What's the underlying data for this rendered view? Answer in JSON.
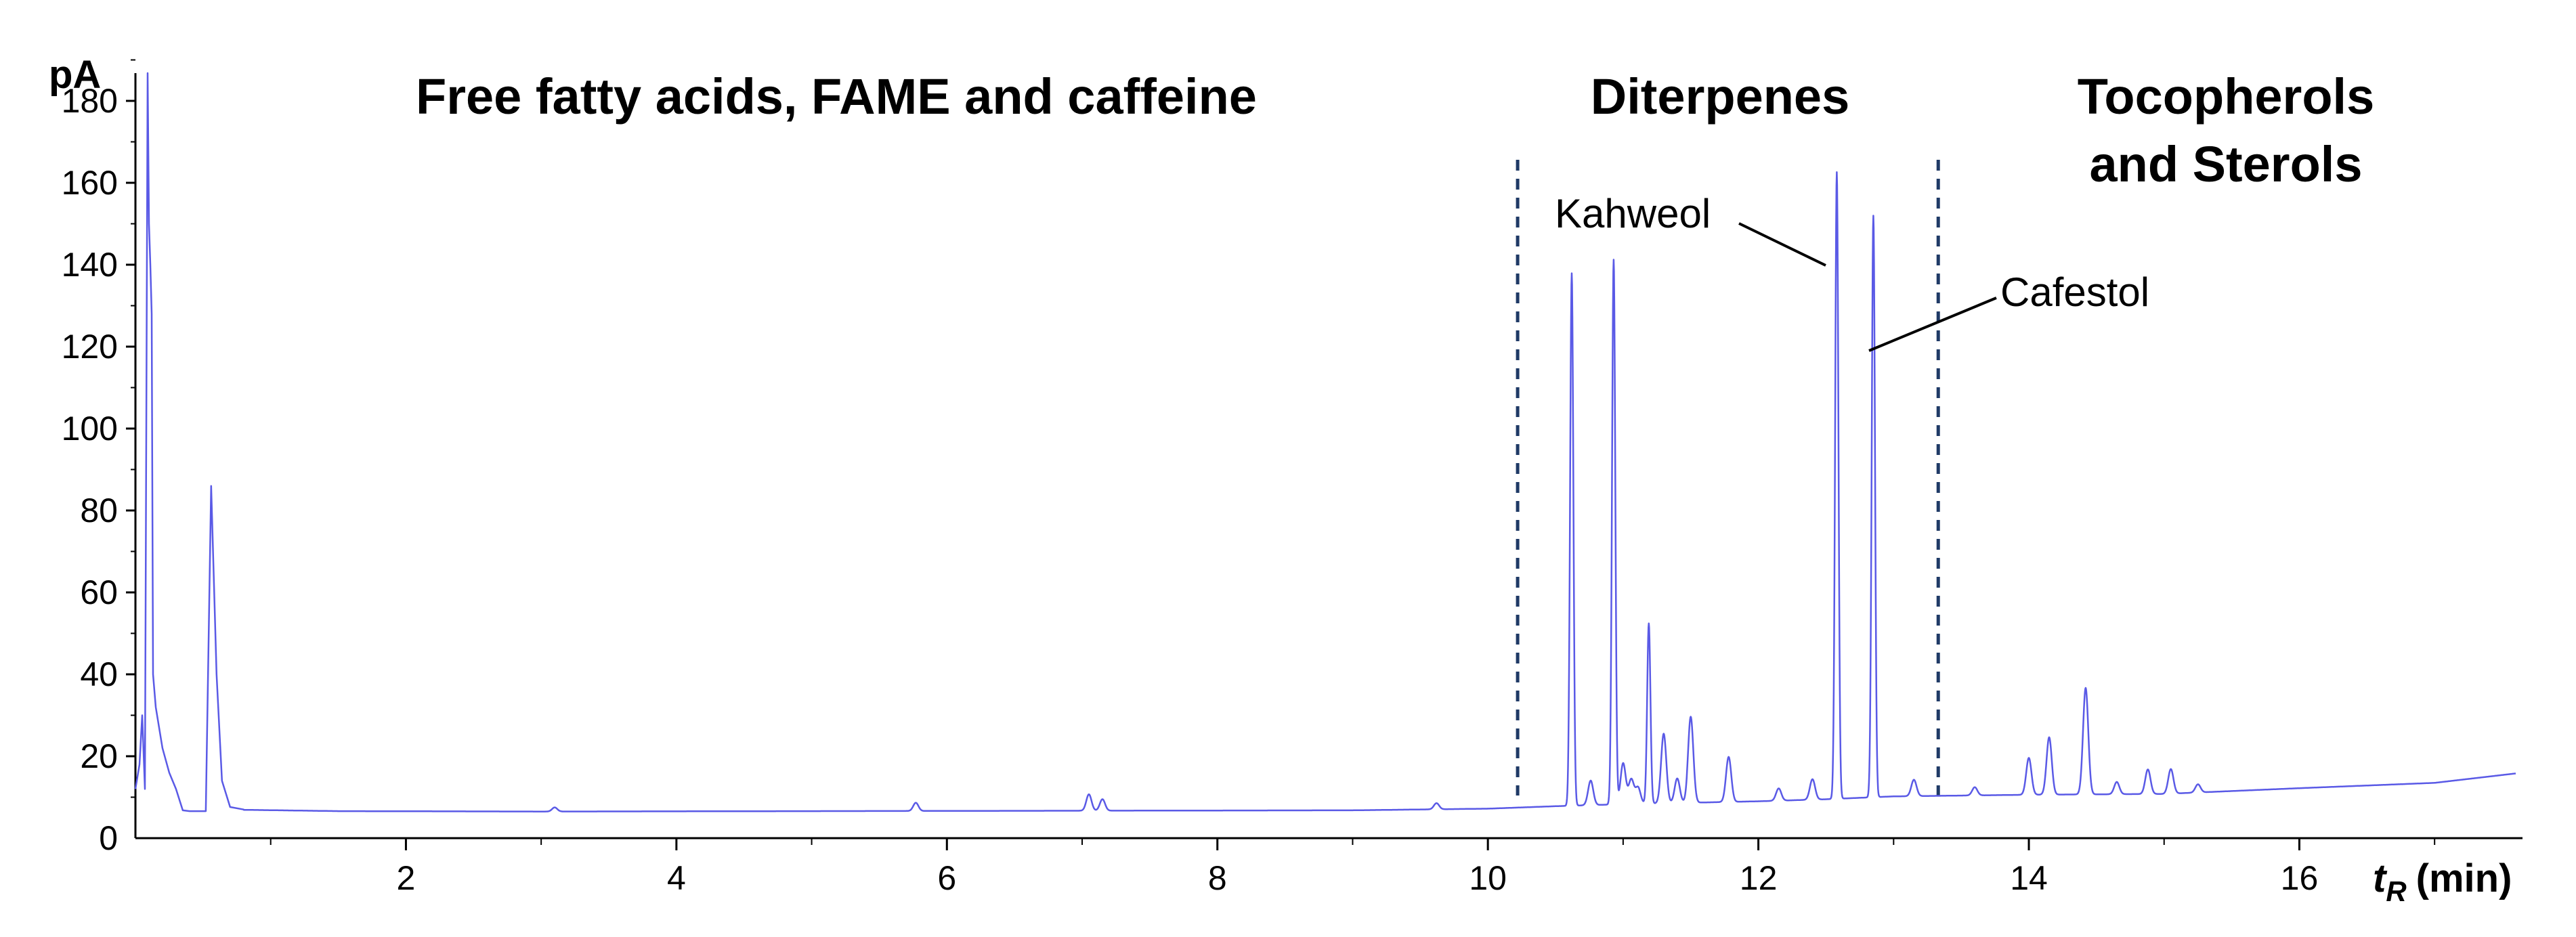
{
  "chart_data": {
    "type": "line",
    "ylabel": "pA",
    "xlabel_symbol": "t",
    "xlabel_subscript": "R",
    "xlabel_unit": "(min)",
    "xlim": [
      0,
      17.65
    ],
    "ylim": [
      0,
      200
    ],
    "x_ticks": [
      "2",
      "4",
      "6",
      "8",
      "10",
      "12",
      "14",
      "16"
    ],
    "y_ticks": [
      "0",
      "20",
      "40",
      "60",
      "80",
      "100",
      "120",
      "140",
      "160",
      "180"
    ],
    "regions": [
      {
        "label": "Free fatty acids, FAME and caffeine"
      },
      {
        "label": "Diterpenes"
      },
      {
        "label": "Tocopherols",
        "label2": "and Sterols"
      }
    ],
    "dividers_x": [
      10.22,
      13.33
    ],
    "annotations": [
      {
        "text": "Kahweol",
        "x": 12.58,
        "y": 152
      },
      {
        "text": "Cafestol",
        "x": 12.85,
        "y": 128
      }
    ],
    "baseline": [
      [
        0.62,
        7.0
      ],
      [
        1.5,
        6.6
      ],
      [
        3.0,
        6.5
      ],
      [
        5.0,
        6.6
      ],
      [
        7.0,
        6.7
      ],
      [
        9.0,
        6.8
      ],
      [
        10.0,
        7.2
      ],
      [
        10.5,
        7.8
      ],
      [
        11.0,
        8.3
      ],
      [
        12.0,
        9.0
      ],
      [
        12.5,
        9.5
      ],
      [
        13.0,
        10.2
      ],
      [
        13.5,
        10.4
      ],
      [
        14.0,
        10.6
      ],
      [
        15.0,
        10.8
      ],
      [
        16.0,
        12.2
      ],
      [
        17.0,
        13.5
      ],
      [
        17.6,
        15.8
      ]
    ],
    "initial_trace": [
      [
        0.0,
        12
      ],
      [
        0.03,
        18
      ],
      [
        0.05,
        30
      ],
      [
        0.07,
        12
      ],
      [
        0.09,
        210
      ],
      [
        0.1,
        150
      ],
      [
        0.11,
        140
      ],
      [
        0.12,
        128
      ],
      [
        0.13,
        40
      ],
      [
        0.15,
        32
      ],
      [
        0.2,
        22
      ],
      [
        0.25,
        16
      ],
      [
        0.3,
        12
      ],
      [
        0.35,
        6.8
      ],
      [
        0.4,
        6.6
      ],
      [
        0.52,
        6.6
      ],
      [
        0.56,
        86
      ],
      [
        0.6,
        40
      ],
      [
        0.64,
        14
      ],
      [
        0.7,
        7.6
      ],
      [
        0.8,
        7.0
      ]
    ],
    "peaks": [
      {
        "rt": 3.1,
        "height": 1.0
      },
      {
        "rt": 5.77,
        "height": 2.0
      },
      {
        "rt": 7.05,
        "height": 4.0
      },
      {
        "rt": 7.15,
        "height": 2.8
      },
      {
        "rt": 9.62,
        "height": 1.5
      },
      {
        "rt": 10.62,
        "height": 130
      },
      {
        "rt": 10.76,
        "height": 6
      },
      {
        "rt": 10.93,
        "height": 133
      },
      {
        "rt": 11.0,
        "height": 10
      },
      {
        "rt": 11.06,
        "height": 6
      },
      {
        "rt": 11.11,
        "height": 4
      },
      {
        "rt": 11.19,
        "height": 44
      },
      {
        "rt": 11.3,
        "height": 17
      },
      {
        "rt": 11.4,
        "height": 6
      },
      {
        "rt": 11.5,
        "height": 21
      },
      {
        "rt": 11.78,
        "height": 11
      },
      {
        "rt": 12.15,
        "height": 3
      },
      {
        "rt": 12.4,
        "height": 5
      },
      {
        "rt": 12.58,
        "height": 153
      },
      {
        "rt": 12.85,
        "height": 142
      },
      {
        "rt": 13.15,
        "height": 4
      },
      {
        "rt": 13.6,
        "height": 2
      },
      {
        "rt": 14.0,
        "height": 9
      },
      {
        "rt": 14.15,
        "height": 14
      },
      {
        "rt": 14.42,
        "height": 26
      },
      {
        "rt": 14.65,
        "height": 3
      },
      {
        "rt": 14.88,
        "height": 6
      },
      {
        "rt": 15.05,
        "height": 6
      },
      {
        "rt": 15.25,
        "height": 2
      }
    ]
  },
  "colors": {
    "trace": "#5a5ae6",
    "divider": "#1f3a66",
    "axis": "#000000"
  }
}
